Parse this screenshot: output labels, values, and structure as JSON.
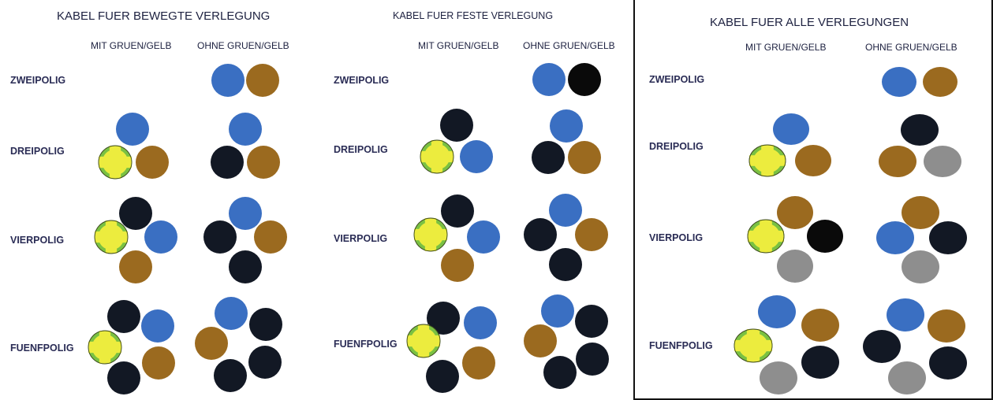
{
  "colors": {
    "blue": "#3a6fc2",
    "brown": "#9b6a1f",
    "black": "#121824",
    "jet": "#0a0a0a",
    "grey": "#8e8e8e",
    "yellow": "#ecec3e",
    "green": "#7ac142"
  },
  "panels": [
    {
      "title": "KABEL FUER BEWEGTE VERLEGUNG",
      "col_with": "MIT GRUEN/GELB",
      "col_without": "OHNE GRUEN/GELB",
      "rows": [
        {
          "label": "ZWEIPOLIG",
          "with": [],
          "without": [
            "blue",
            "brown"
          ]
        },
        {
          "label": "DREIPOLIG",
          "with": [
            "blue",
            "green-yellow",
            "brown"
          ],
          "without": [
            "blue",
            "black",
            "brown"
          ]
        },
        {
          "label": "VIERPOLIG",
          "with": [
            "black",
            "green-yellow",
            "blue",
            "brown"
          ],
          "without": [
            "blue",
            "black",
            "brown",
            "black"
          ]
        },
        {
          "label": "FUENFPOLIG",
          "with": [
            "black",
            "blue",
            "green-yellow",
            "brown",
            "black"
          ],
          "without": [
            "blue",
            "black",
            "brown",
            "black",
            "black"
          ]
        }
      ]
    },
    {
      "title": "KABEL FUER FESTE VERLEGUNG",
      "col_with": "MIT GRUEN/GELB",
      "col_without": "OHNE GRUEN/GELB",
      "rows": [
        {
          "label": "ZWEIPOLIG",
          "with": [],
          "without": [
            "blue",
            "black"
          ]
        },
        {
          "label": "DREIPOLIG",
          "with": [
            "black",
            "green-yellow",
            "blue"
          ],
          "without": [
            "blue",
            "black",
            "brown"
          ]
        },
        {
          "label": "VIERPOLIG",
          "with": [
            "black",
            "green-yellow",
            "blue",
            "brown"
          ],
          "without": [
            "blue",
            "black",
            "brown",
            "black"
          ]
        },
        {
          "label": "FUENFPOLIG",
          "with": [
            "black",
            "blue",
            "green-yellow",
            "brown",
            "black"
          ],
          "without": [
            "blue",
            "black",
            "brown",
            "black",
            "black"
          ]
        }
      ]
    },
    {
      "title": "KABEL FUER ALLE VERLEGUNGEN",
      "col_with": "MIT GRUEN/GELB",
      "col_without": "OHNE GRUEN/GELB",
      "rows": [
        {
          "label": "ZWEIPOLIG",
          "with": [],
          "without": [
            "blue",
            "brown"
          ]
        },
        {
          "label": "DREIPOLIG",
          "with": [
            "blue",
            "green-yellow",
            "brown"
          ],
          "without": [
            "black",
            "brown",
            "grey"
          ]
        },
        {
          "label": "VIERPOLIG",
          "with": [
            "brown",
            "green-yellow",
            "black",
            "grey"
          ],
          "without": [
            "brown",
            "blue",
            "black",
            "grey"
          ]
        },
        {
          "label": "FUENFPOLIG",
          "with": [
            "blue",
            "brown",
            "green-yellow",
            "black",
            "grey"
          ],
          "without": [
            "blue",
            "brown",
            "black",
            "black",
            "grey"
          ]
        }
      ]
    }
  ]
}
